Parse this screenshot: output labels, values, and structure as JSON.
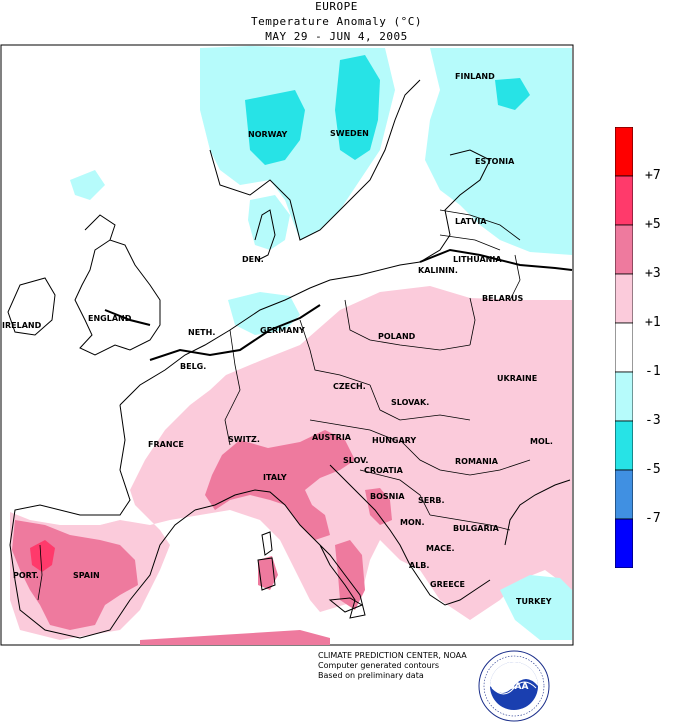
{
  "header": {
    "region": "EUROPE",
    "variable": "Temperature Anomaly (°C)",
    "period": "MAY 29 - JUN 4, 2005"
  },
  "legend": {
    "labels": [
      "+7",
      "+5",
      "+3",
      "+1",
      "-1",
      "-3",
      "-5",
      "-7"
    ],
    "colors": [
      "#ff0000",
      "#ff3a6b",
      "#ee7a9e",
      "#fbcbdb",
      "#ffffff",
      "#b6fbfb",
      "#27e3e6",
      "#4090e2",
      "#0000ff"
    ]
  },
  "map": {
    "country_labels": {
      "finland": "FINLAND",
      "norway": "NORWAY",
      "sweden": "SWEDEN",
      "estonia": "ESTONIA",
      "latvia": "LATVIA",
      "lithuania": "LITHUANIA",
      "kalinin": "KALININ.",
      "belarus": "BELARUS",
      "denmark": "DEN.",
      "england": "ENGLAND",
      "ireland": "IRELAND",
      "germany": "GERMANY",
      "neth": "NETH.",
      "belg": "BELG.",
      "poland": "POLAND",
      "czech": "CZECH.",
      "slovak": "SLOVAK.",
      "ukraine": "UKRAINE",
      "mol": "MOL.",
      "france": "FRANCE",
      "switz": "SWITZ.",
      "austria": "AUSTRIA",
      "hungary": "HUNGARY",
      "slov": "SLOV.",
      "croatia": "CROATIA",
      "romania": "ROMANIA",
      "bosnia": "BOSNIA",
      "serb": "SERB.",
      "italy": "ITALY",
      "mon": "MON.",
      "bulgaria": "BULGARIA",
      "mace": "MACE.",
      "alb": "ALB.",
      "greece": "GREECE",
      "turkey": "TURKEY",
      "portugal": "PORT.",
      "spain": "SPAIN"
    }
  },
  "credits": {
    "line1": "CLIMATE PREDICTION CENTER, NOAA",
    "line2": "Computer generated contours",
    "line3": "Based on preliminary data"
  },
  "logo": {
    "text": "NOAA",
    "ring_text": "NATIONAL OCEANIC AND ATMOSPHERIC ADMINISTRATION · U.S. DEPARTMENT OF COMMERCE"
  }
}
